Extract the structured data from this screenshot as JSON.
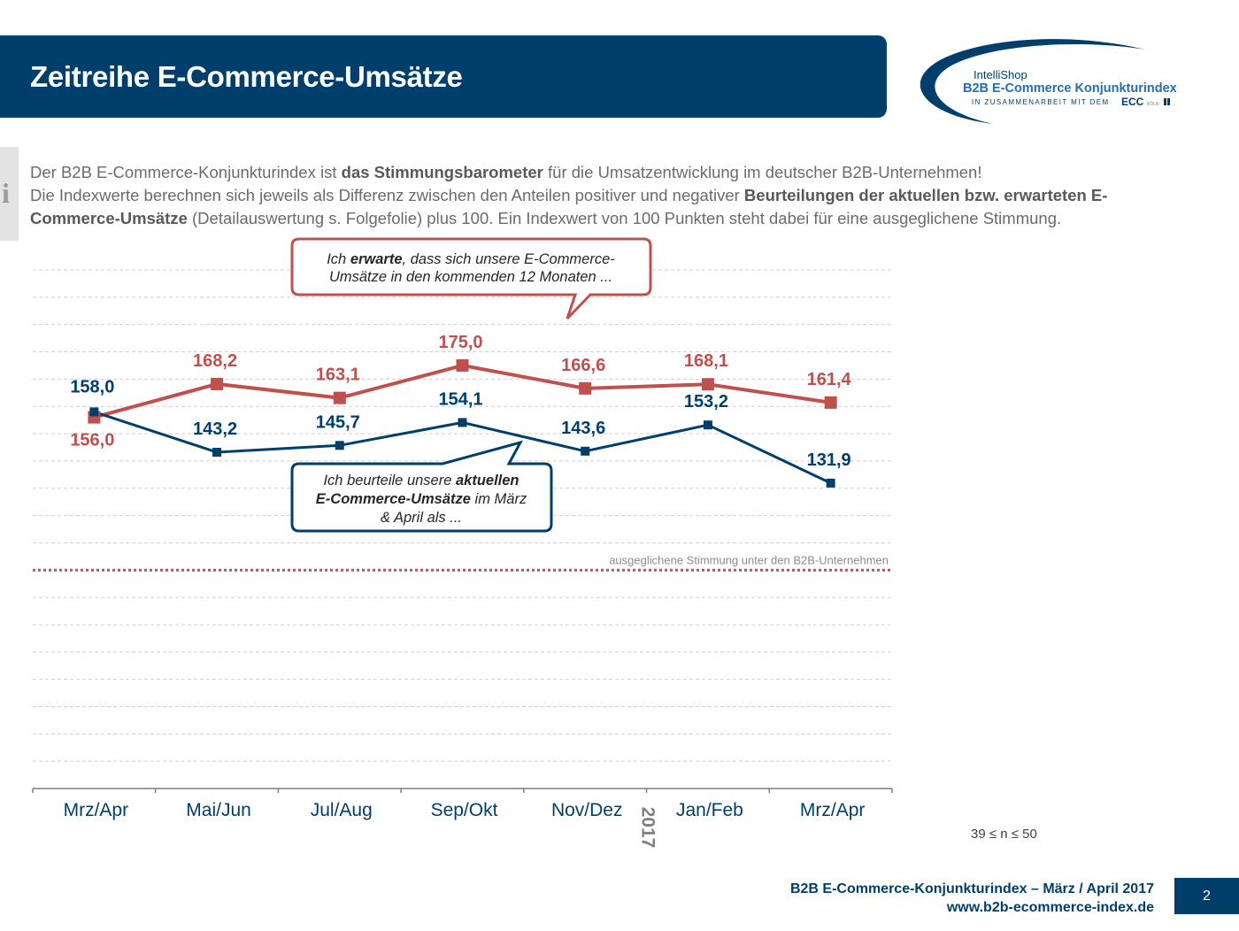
{
  "header": {
    "title": "Zeitreihe E-Commerce-Umsätze"
  },
  "logo": {
    "brand": "IntelliShop",
    "product": "B2B E-Commerce Konjunkturindex",
    "partner_prefix": "IN ZUSAMMENARBEIT MIT DEM",
    "partner": "ECC",
    "partner_suffix": "KÖLN"
  },
  "info": {
    "icon": "info-icon",
    "line1_a": "Der B2B E-Commerce-Konjunkturindex ist ",
    "line1_b": "das Stimmungsbarometer",
    "line1_c": " für die Umsatzentwicklung im deutscher B2B-Unternehmen!",
    "line2_a": "Die Indexwerte berechnen sich jeweils als Differenz zwischen den Anteilen positiver und negativer ",
    "line2_b": "Beurteilungen der aktuellen bzw. erwarteten E-Commerce-Umsätze",
    "line2_c": " (Detailauswertung s. Folgefolie) plus 100. Ein Indexwert von 100 Punkten steht dabei für eine ausgeglichene Stimmung."
  },
  "chart_data": {
    "type": "line",
    "categories": [
      "Mrz/Apr",
      "Mai/Jun",
      "Jul/Aug",
      "Sep/Okt",
      "Nov/Dez",
      "Jan/Feb",
      "Mrz/Apr"
    ],
    "year_divider_label": "2017",
    "ylim": [
      20,
      210
    ],
    "grid": "horizontal-dashed",
    "reference_line": {
      "value": 100,
      "label": "ausgeglichene Stimmung unter den B2B-Unternehmen",
      "color": "#c0504d"
    },
    "series": [
      {
        "key": "expected",
        "color": "#c0504d",
        "values": [
          156.0,
          168.2,
          163.1,
          175.0,
          166.6,
          168.1,
          161.4
        ],
        "labels": [
          "156,0",
          "168,2",
          "163,1",
          "175,0",
          "166,6",
          "168,1",
          "161,4"
        ]
      },
      {
        "key": "current",
        "color": "#003f6b",
        "values": [
          158.0,
          143.2,
          145.7,
          154.1,
          143.6,
          153.2,
          131.9
        ],
        "labels": [
          "158,0",
          "143,2",
          "145,7",
          "154,1",
          "143,6",
          "153,2",
          "131,9"
        ]
      }
    ],
    "callouts": {
      "expected": {
        "text_a": "Ich ",
        "text_b": "erwarte",
        "text_c": ", dass sich unsere E-Commerce-",
        "text_d": "Umsätze in den kommenden 12 Monaten  ..."
      },
      "current": {
        "text_a": "Ich beurteile unsere ",
        "text_b": "aktuellen",
        "text_c": "E-Commerce-Umsätze",
        "text_d": " im März",
        "text_e": "& April als ..."
      }
    }
  },
  "sample_note": "39 ≤ n ≤ 50",
  "footer": {
    "line1": "B2B E-Commerce-Konjunkturindex – März / April 2017",
    "line2": "www.b2b-ecommerce-index.de",
    "page_number": "2"
  }
}
